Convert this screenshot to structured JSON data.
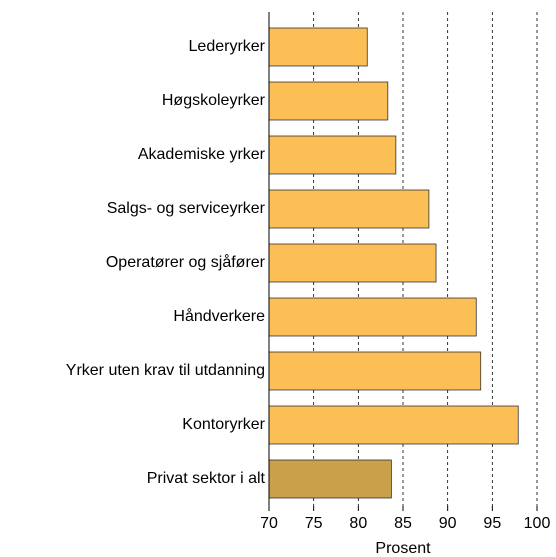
{
  "chart_data": {
    "type": "barh",
    "categories": [
      "Lederyrker",
      "Høgskoleyrker",
      "Akademiske yrker",
      "Salgs- og serviceyrker",
      "Operatører og sjåfører",
      "Håndverkere",
      "Yrker uten krav til utdanning",
      "Kontoryrker",
      "Privat sektor i alt"
    ],
    "values": [
      81.0,
      83.3,
      84.2,
      87.9,
      88.7,
      93.2,
      93.7,
      97.9,
      83.7
    ],
    "colors": [
      "#fcbf56",
      "#fcbf56",
      "#fcbf56",
      "#fcbf56",
      "#fcbf56",
      "#fcbf56",
      "#fcbf56",
      "#fcbf56",
      "#c9a14b"
    ],
    "xlabel": "Prosent",
    "xlim": [
      70,
      100
    ],
    "xticks": [
      70,
      75,
      80,
      85,
      90,
      95,
      100
    ],
    "grid": true
  }
}
